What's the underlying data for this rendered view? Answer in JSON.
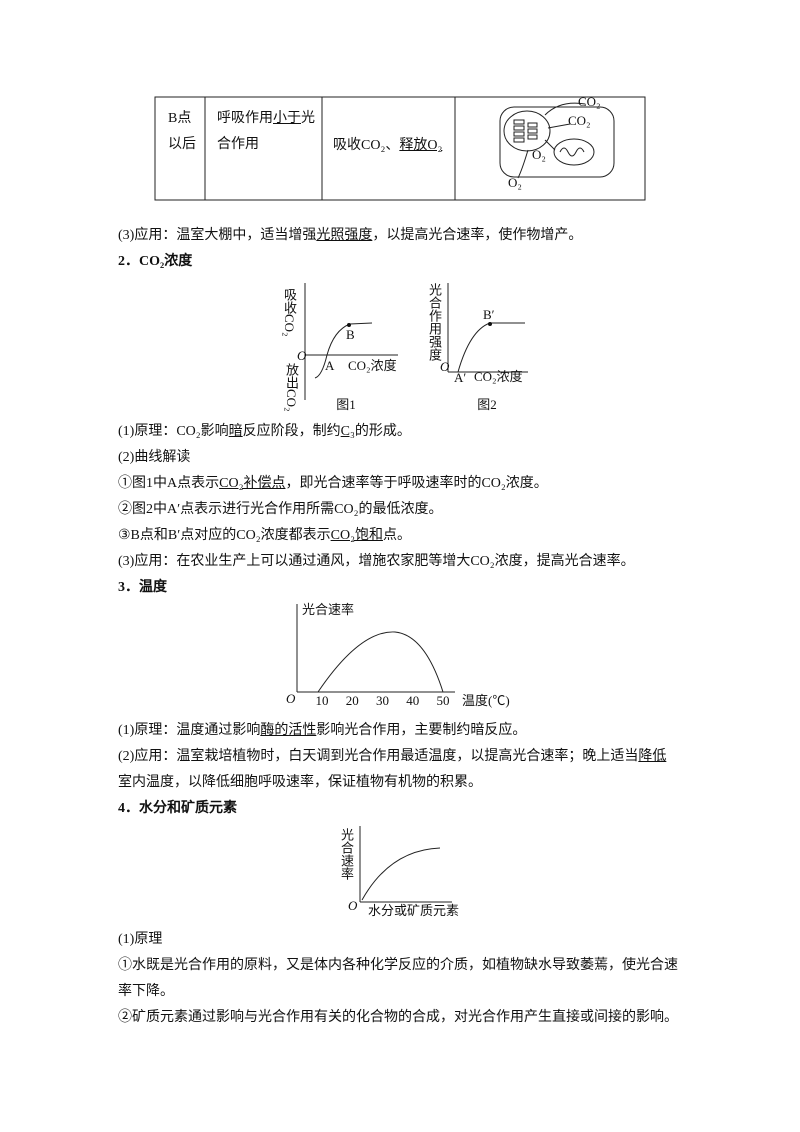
{
  "table": {
    "cells": [
      {
        "lines": [
          [
            "B点"
          ],
          [
            "以后"
          ]
        ]
      },
      {
        "lines": [
          [
            "呼吸作用",
            {
              "text": "小于",
              "underline": true
            },
            "光"
          ],
          [
            "合作用"
          ]
        ]
      },
      {
        "lines": [
          [
            "吸收CO₂、",
            {
              "text": "释放O₂",
              "underline": true
            }
          ]
        ]
      }
    ],
    "diagram_labels": [
      "CO₂",
      "CO₂",
      "O₂",
      "O₂"
    ]
  },
  "sections": [
    {
      "lines": [
        {
          "runs": [
            "(3)应用：温室大棚中，适当增强",
            {
              "text": "光照强度",
              "underline": true
            },
            "，以提高光合速率，使作物增产。"
          ]
        },
        {
          "runs": [
            "2．CO₂浓度"
          ],
          "bold": true
        }
      ]
    },
    {
      "lines": [
        {
          "runs": [
            "(1)原理：CO₂影响",
            {
              "text": "暗",
              "underline": true
            },
            "反应阶段，制约",
            {
              "text": "C₃",
              "underline": true
            },
            "的形成。"
          ]
        },
        {
          "runs": [
            "(2)曲线解读"
          ]
        },
        {
          "runs": [
            "①图1中A点表示",
            {
              "text": "CO₂补偿点",
              "underline": true
            },
            "，即光合速率等于呼吸速率时的CO₂浓度。"
          ]
        },
        {
          "runs": [
            "②图2中A′点表示进行光合作用所需CO₂的最低浓度。"
          ]
        },
        {
          "runs": [
            "③B点和B′点对应的CO₂浓度都表示",
            {
              "text": "CO₂饱和",
              "underline": true
            },
            "点。"
          ]
        },
        {
          "runs": [
            "(3)应用：在农业生产上可以通过通风，增施农家肥等增大CO₂浓度，提高光合速率。"
          ]
        },
        {
          "runs": [
            "3．温度"
          ],
          "bold": true
        }
      ]
    },
    {
      "lines": [
        {
          "runs": [
            "(1)原理：温度通过影响",
            {
              "text": "酶的活性",
              "underline": true
            },
            "影响光合作用，主要制约暗反应。"
          ]
        },
        {
          "runs": [
            "(2)应用：温室栽培植物时，白天调到光合作用最适温度，以提高光合速率；晚上适当",
            {
              "text": "降低",
              "underline": true
            }
          ]
        },
        {
          "runs": [
            "室内温度，以降低细胞呼吸速率，保证植物有机物的积累。"
          ]
        },
        {
          "runs": [
            "4．水分和矿质元素"
          ],
          "bold": true
        }
      ]
    },
    {
      "lines": [
        {
          "runs": [
            "(1)原理"
          ]
        },
        {
          "runs": [
            "①水既是光合作用的原料，又是体内各种化学反应的介质，如植物缺水导致萎蔫，使光合速"
          ]
        },
        {
          "runs": [
            "率下降。"
          ]
        },
        {
          "runs": [
            "②矿质元素通过影响与光合作用有关的化合物的合成，对光合作用产生直接或间接的影响。"
          ]
        }
      ]
    }
  ],
  "figure1": {
    "y_top": "吸收CO₂",
    "y_bottom": "放出CO₂",
    "origin": "O",
    "point_a": "A",
    "point_b": "B",
    "x_label": "CO₂浓度",
    "caption": "图1"
  },
  "figure2": {
    "y_label": "光合作用强度",
    "origin": "O",
    "point_a": "A′",
    "point_b": "B′",
    "x_label": "CO₂浓度",
    "caption": "图2"
  },
  "figure3": {
    "y_label": "光合速率",
    "origin": "O",
    "xticks": [
      10,
      20,
      30,
      40,
      50
    ],
    "x_label": "温度(℃)"
  },
  "figure4": {
    "y_label": "光合速率",
    "origin": "O",
    "x_label": "水分或矿质元素"
  }
}
